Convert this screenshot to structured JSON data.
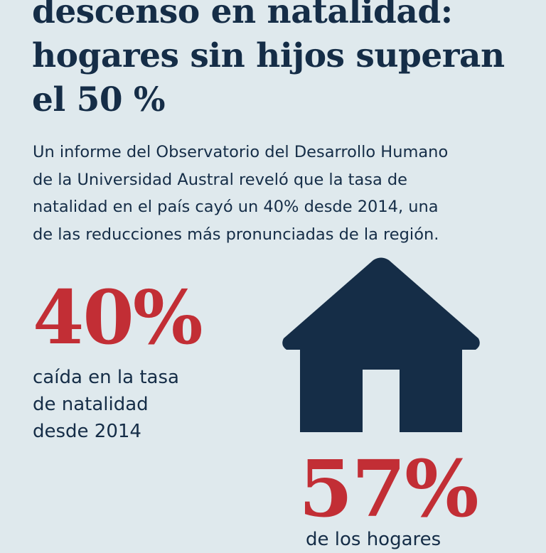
{
  "headline": {
    "lines": [
      "descenso en natalidad:",
      "hogares sin hijos superan",
      "el 50 %"
    ]
  },
  "lede": {
    "lines": [
      "Un informe del Observatorio del Desarrollo Humano",
      "de la Universidad Austral reveló que la tasa de",
      "natalidad en el país cayó un 40% desde 2014, una",
      "de las reducciones más pronunciadas de la región."
    ]
  },
  "stats": [
    {
      "value": "40%",
      "caption_lines": [
        "caída en la tasa",
        "de natalidad",
        "desde 2014"
      ]
    },
    {
      "value": "57%",
      "caption_lines": [
        "de los hogares"
      ]
    }
  ],
  "icons": {
    "house": "house-icon"
  },
  "colors": {
    "background": "#dfe9ed",
    "navy": "#152d47",
    "accent_red": "#c22e35"
  }
}
